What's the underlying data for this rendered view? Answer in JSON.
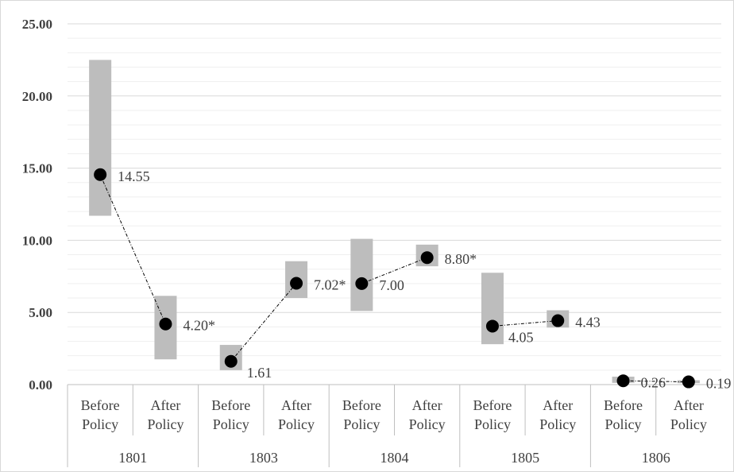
{
  "chart_data": {
    "type": "range_dot",
    "y_ticks": [
      "0.00",
      "5.00",
      "10.00",
      "15.00",
      "20.00",
      "25.00"
    ],
    "ylim": [
      0,
      25
    ],
    "y_grid_major": 5,
    "y_grid_minor": 1,
    "groups": [
      {
        "name": "1801",
        "points": [
          {
            "category": [
              "Before",
              "Policy"
            ],
            "value": 14.55,
            "low": 11.7,
            "high": 22.5,
            "label": "14.55",
            "label_side": "right"
          },
          {
            "category": [
              "After",
              "Policy"
            ],
            "value": 4.2,
            "low": 1.75,
            "high": 6.15,
            "label": "4.20*",
            "label_side": "right"
          }
        ]
      },
      {
        "name": "1803",
        "points": [
          {
            "category": [
              "Before",
              "Policy"
            ],
            "value": 1.61,
            "low": 1.0,
            "high": 2.75,
            "label": "1.61",
            "label_side": "below-right"
          },
          {
            "category": [
              "After",
              "Policy"
            ],
            "value": 7.02,
            "low": 6.0,
            "high": 8.55,
            "label": "7.02*",
            "label_side": "right"
          }
        ]
      },
      {
        "name": "1804",
        "points": [
          {
            "category": [
              "Before",
              "Policy"
            ],
            "value": 7.0,
            "low": 5.1,
            "high": 10.1,
            "label": "7.00",
            "label_side": "right"
          },
          {
            "category": [
              "After",
              "Policy"
            ],
            "value": 8.8,
            "low": 8.2,
            "high": 9.7,
            "label": "8.80*",
            "label_side": "right"
          }
        ]
      },
      {
        "name": "1805",
        "points": [
          {
            "category": [
              "Before",
              "Policy"
            ],
            "value": 4.05,
            "low": 2.8,
            "high": 7.75,
            "label": "4.05",
            "label_side": "below-right"
          },
          {
            "category": [
              "After",
              "Policy"
            ],
            "value": 4.43,
            "low": 3.95,
            "high": 5.15,
            "label": "4.43",
            "label_side": "right"
          }
        ]
      },
      {
        "name": "1806",
        "points": [
          {
            "category": [
              "Before",
              "Policy"
            ],
            "value": 0.26,
            "low": 0.12,
            "high": 0.55,
            "label": "0.26",
            "label_side": "right"
          },
          {
            "category": [
              "After",
              "Policy"
            ],
            "value": 0.19,
            "low": 0.1,
            "high": 0.3,
            "label": "0.19",
            "label_side": "right"
          }
        ]
      }
    ],
    "connector": "dash-dot within each group",
    "legend": "none",
    "colors": {
      "range_bar": "#bdbdbd",
      "point": "#000000",
      "text": "#3f3f3f",
      "gridline": "#d9d9d9"
    }
  }
}
